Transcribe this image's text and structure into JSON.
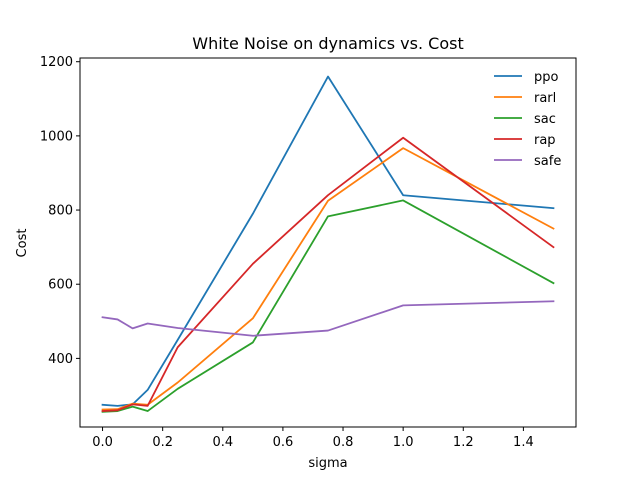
{
  "chart_data": {
    "type": "line",
    "title": "White Noise on dynamics vs. Cost",
    "xlabel": "sigma",
    "ylabel": "Cost",
    "xlim": [
      -0.075,
      1.575
    ],
    "ylim": [
      215,
      1210
    ],
    "xticks": [
      0.0,
      0.2,
      0.4,
      0.6,
      0.8,
      1.0,
      1.2,
      1.4
    ],
    "xtick_labels": [
      "0.0",
      "0.2",
      "0.4",
      "0.6",
      "0.8",
      "1.0",
      "1.2",
      "1.4"
    ],
    "yticks": [
      400,
      600,
      800,
      1000,
      1200
    ],
    "ytick_labels": [
      "400",
      "600",
      "800",
      "1000",
      "1200"
    ],
    "grid": false,
    "legend_position": "top-right",
    "x": [
      0.0,
      0.05,
      0.1,
      0.15,
      0.25,
      0.5,
      0.75,
      1.0,
      1.5
    ],
    "series": [
      {
        "name": "ppo",
        "color": "#1f77b4",
        "values": [
          275,
          272,
          276,
          315,
          450,
          790,
          1160,
          840,
          805
        ]
      },
      {
        "name": "rarl",
        "color": "#ff7f0e",
        "values": [
          262,
          263,
          278,
          275,
          335,
          508,
          825,
          967,
          750
        ]
      },
      {
        "name": "sac",
        "color": "#2ca02c",
        "values": [
          256,
          258,
          270,
          258,
          318,
          443,
          783,
          826,
          603
        ]
      },
      {
        "name": "rap",
        "color": "#d62728",
        "values": [
          258,
          260,
          276,
          272,
          430,
          655,
          840,
          995,
          700
        ]
      },
      {
        "name": "safe",
        "color": "#9467bd",
        "values": [
          511,
          505,
          481,
          494,
          482,
          461,
          475,
          543,
          554
        ]
      }
    ]
  }
}
